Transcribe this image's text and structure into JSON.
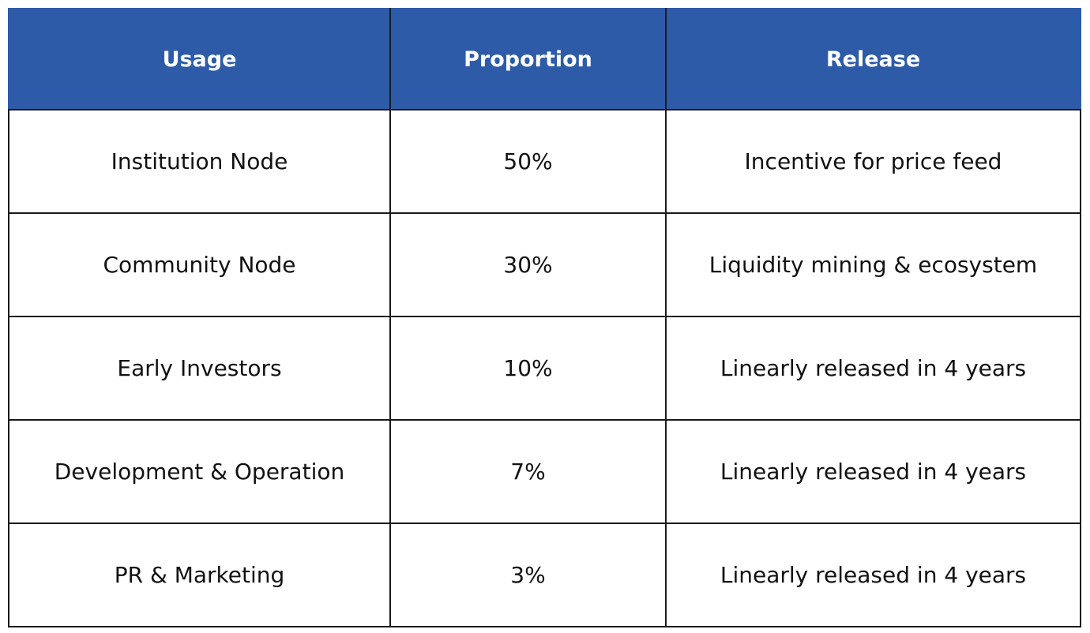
{
  "table": {
    "headers": [
      "Usage",
      "Proportion",
      "Release"
    ],
    "rows": [
      {
        "usage": "Institution Node",
        "proportion": "50%",
        "release": "Incentive for price feed"
      },
      {
        "usage": "Community Node",
        "proportion": "30%",
        "release": "Liquidity mining & ecosystem"
      },
      {
        "usage": "Early Investors",
        "proportion": "10%",
        "release": "Linearly released in 4 years"
      },
      {
        "usage": "Development & Operation",
        "proportion": "7%",
        "release": "Linearly released in 4 years"
      },
      {
        "usage": "PR & Marketing",
        "proportion": "3%",
        "release": "Linearly released in 4 years"
      }
    ]
  },
  "colors": {
    "header_background": "#2d5ba8",
    "header_text": "#ffffff",
    "cell_text": "#111111",
    "border": "#1a1a1a"
  }
}
